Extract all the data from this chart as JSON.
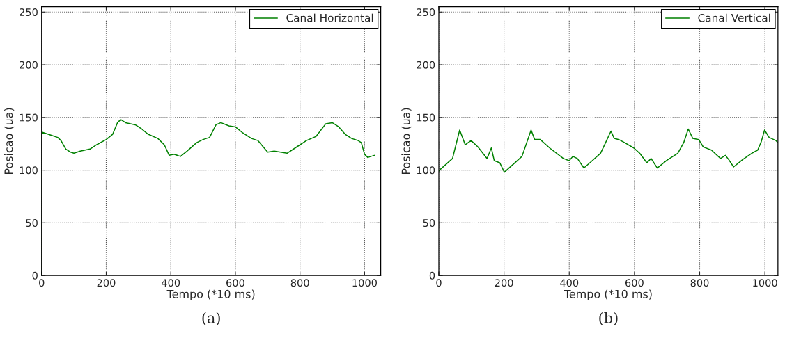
{
  "chart_data": [
    {
      "type": "line",
      "xlabel": "Tempo (*10 ms)",
      "ylabel": "Posicao (ua)",
      "xlim": [
        0,
        1050
      ],
      "ylim": [
        0,
        255
      ],
      "xticks": [
        0,
        200,
        400,
        600,
        800,
        1000
      ],
      "yticks": [
        0,
        50,
        100,
        150,
        200,
        250
      ],
      "grid": true,
      "legend": "top right",
      "annotations": [
        "(a)"
      ],
      "series": [
        {
          "name": "Canal Horizontal",
          "color": "#008000",
          "x": [
            0,
            1,
            30,
            50,
            60,
            75,
            90,
            100,
            120,
            150,
            170,
            200,
            220,
            235,
            245,
            260,
            290,
            310,
            330,
            360,
            380,
            395,
            410,
            430,
            450,
            480,
            500,
            520,
            540,
            555,
            580,
            600,
            620,
            650,
            670,
            700,
            720,
            740,
            760,
            790,
            820,
            850,
            880,
            900,
            920,
            940,
            960,
            980,
            990,
            1000,
            1010,
            1020,
            1030
          ],
          "values": [
            0,
            136,
            133,
            131,
            128,
            120,
            117,
            116,
            118,
            120,
            124,
            129,
            134,
            145,
            148,
            145,
            143,
            139,
            134,
            130,
            124,
            114,
            115,
            113,
            118,
            126,
            129,
            131,
            143,
            145,
            142,
            141,
            136,
            130,
            128,
            117,
            118,
            117,
            116,
            122,
            128,
            132,
            144,
            145,
            141,
            134,
            130,
            128,
            126,
            115,
            112,
            113,
            114
          ]
        }
      ]
    },
    {
      "type": "line",
      "xlabel": "Tempo (*10 ms)",
      "ylabel": "Posicao (ua)",
      "xlim": [
        0,
        1040
      ],
      "ylim": [
        0,
        255
      ],
      "xticks": [
        0,
        200,
        400,
        600,
        800,
        1000
      ],
      "yticks": [
        0,
        50,
        100,
        150,
        200,
        250
      ],
      "grid": true,
      "legend": "top right",
      "annotations": [
        "(b)"
      ],
      "series": [
        {
          "name": "Canal Vertical",
          "color": "#008000",
          "x": [
            0,
            2,
            42,
            64,
            81,
            99,
            120,
            148,
            161,
            170,
            187,
            201,
            255,
            283,
            294,
            311,
            340,
            382,
            400,
            411,
            425,
            445,
            467,
            496,
            510,
            528,
            538,
            552,
            570,
            598,
            616,
            638,
            651,
            670,
            698,
            733,
            751,
            765,
            779,
            797,
            811,
            836,
            864,
            879,
            889,
            904,
            932,
            960,
            978,
            989,
            999,
            1013,
            1034,
            1040
          ],
          "values": [
            99,
            100,
            111,
            138,
            124,
            128,
            122,
            111,
            121,
            109,
            107,
            98,
            113,
            138,
            129,
            129,
            121,
            111,
            109,
            113,
            111,
            102,
            108,
            116,
            125,
            137,
            130,
            129,
            126,
            121,
            116,
            107,
            111,
            102,
            109,
            116,
            126,
            139,
            130,
            129,
            122,
            119,
            111,
            114,
            110,
            103,
            110,
            116,
            119,
            127,
            138,
            131,
            128,
            126
          ]
        }
      ]
    }
  ]
}
